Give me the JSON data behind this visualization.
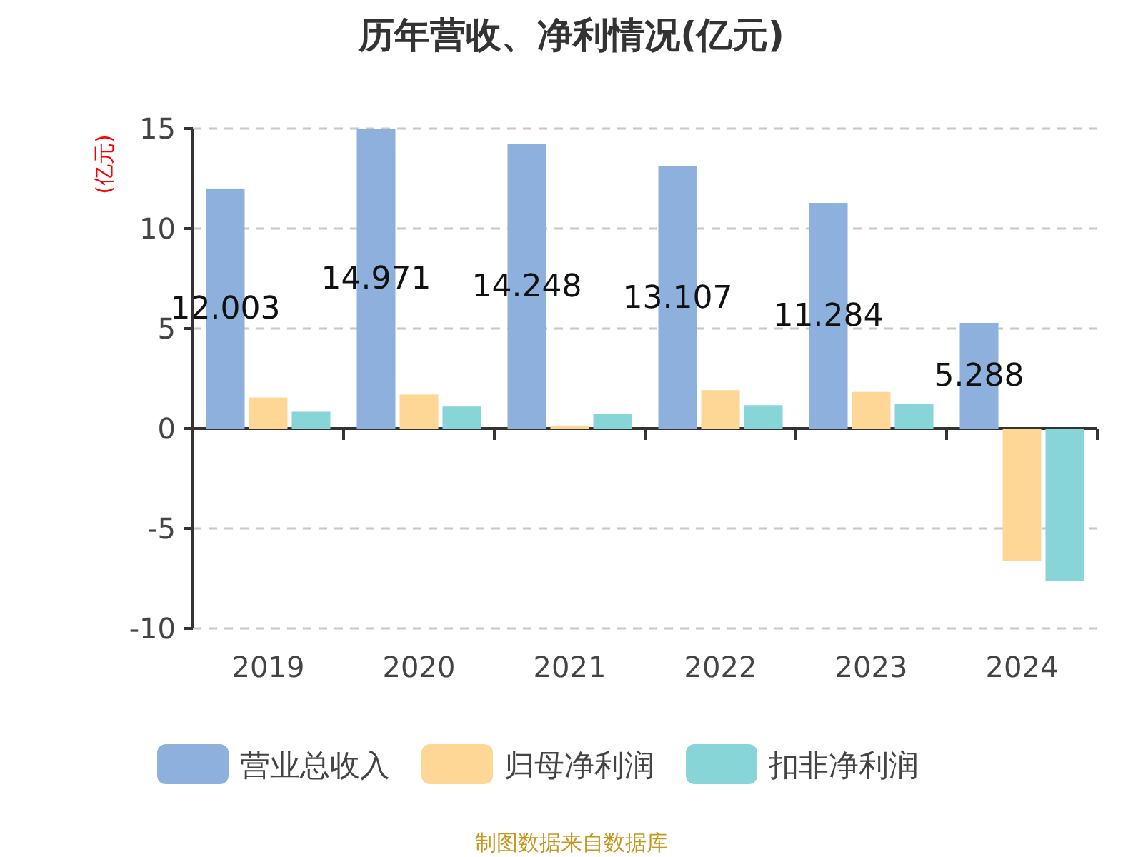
{
  "chart_data": {
    "type": "bar",
    "title": "历年营收、净利情况(亿元)",
    "ylabel": "(亿元)",
    "categories": [
      "2019",
      "2020",
      "2021",
      "2022",
      "2023",
      "2024"
    ],
    "series": [
      {
        "name": "营业总收入",
        "color": "#8eb0dc",
        "values": [
          12.003,
          14.971,
          14.248,
          13.107,
          11.284,
          5.288
        ],
        "value_labels": [
          "12.003",
          "14.971",
          "14.248",
          "13.107",
          "11.284",
          "5.288"
        ]
      },
      {
        "name": "归母净利润",
        "color": "#fed797",
        "values": [
          1.55,
          1.7,
          0.15,
          1.92,
          1.83,
          -6.63
        ]
      },
      {
        "name": "扣非净利润",
        "color": "#88d5d8",
        "values": [
          0.84,
          1.1,
          0.74,
          1.17,
          1.24,
          -7.63
        ]
      }
    ],
    "ylim": [
      -10,
      15
    ],
    "yticks": [
      -10,
      -5,
      0,
      5,
      10,
      15
    ],
    "grid": "y",
    "legend": "bottom",
    "annotations": [
      "制图数据来自数据库"
    ]
  }
}
